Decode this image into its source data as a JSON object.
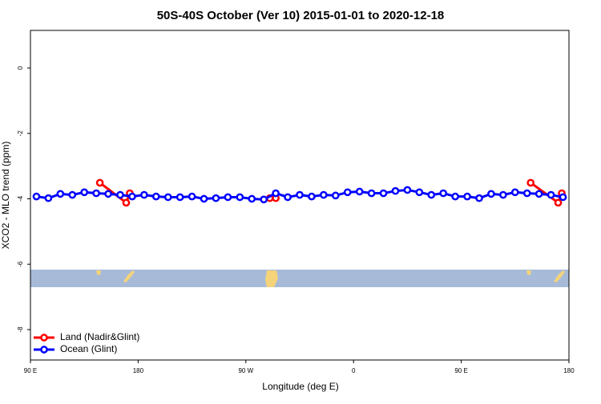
{
  "chart_data": {
    "type": "line",
    "title": "50S-40S October (Ver 10)   2015-01-01 to 2020-12-18",
    "x_label": "Longitude (deg E)",
    "y_label": "XCO2 - MLO trend (ppm)",
    "xlim": [
      90,
      540
    ],
    "xticks": [
      {
        "value": 90,
        "label": "90 E"
      },
      {
        "value": 180,
        "label": "180"
      },
      {
        "value": 270,
        "label": "90 W"
      },
      {
        "value": 360,
        "label": "0"
      },
      {
        "value": 450,
        "label": "90 E"
      },
      {
        "value": 540,
        "label": "180"
      }
    ],
    "ylim": [
      -8.93,
      1.15
    ],
    "yticks": [
      0,
      -2,
      -4,
      -6,
      -8
    ],
    "legend": "bottom-left",
    "series": [
      {
        "name": "Land (Nadir&Glint)",
        "color": "#ff0000",
        "x": [
          148,
          170,
          173,
          null,
          290,
          295,
          null,
          508,
          531,
          534
        ],
        "values": [
          -3.51,
          -4.12,
          -3.83,
          null,
          -3.98,
          -3.98,
          null,
          -3.51,
          -4.12,
          -3.83
        ]
      },
      {
        "name": "Ocean (Glint)",
        "color": "#0000ff",
        "x": [
          95,
          105,
          115,
          125,
          135,
          145,
          155,
          165,
          175,
          185,
          195,
          205,
          215,
          225,
          235,
          245,
          255,
          265,
          275,
          285,
          295,
          305,
          315,
          325,
          335,
          345,
          355,
          365,
          375,
          385,
          395,
          405,
          415,
          425,
          435,
          445,
          455,
          465,
          475,
          485,
          495,
          505,
          515,
          525,
          535
        ],
        "values": [
          -3.93,
          -3.98,
          -3.85,
          -3.88,
          -3.8,
          -3.83,
          -3.85,
          -3.88,
          -3.93,
          -3.88,
          -3.93,
          -3.95,
          -3.95,
          -3.93,
          -4.0,
          -3.98,
          -3.95,
          -3.95,
          -4.0,
          -4.02,
          -3.83,
          -3.95,
          -3.88,
          -3.93,
          -3.88,
          -3.9,
          -3.8,
          -3.78,
          -3.83,
          -3.83,
          -3.76,
          -3.73,
          -3.8,
          -3.88,
          -3.83,
          -3.93,
          -3.93,
          -3.98,
          -3.85,
          -3.88,
          -3.8,
          -3.83,
          -3.85,
          -3.88,
          -3.95
        ]
      }
    ]
  }
}
